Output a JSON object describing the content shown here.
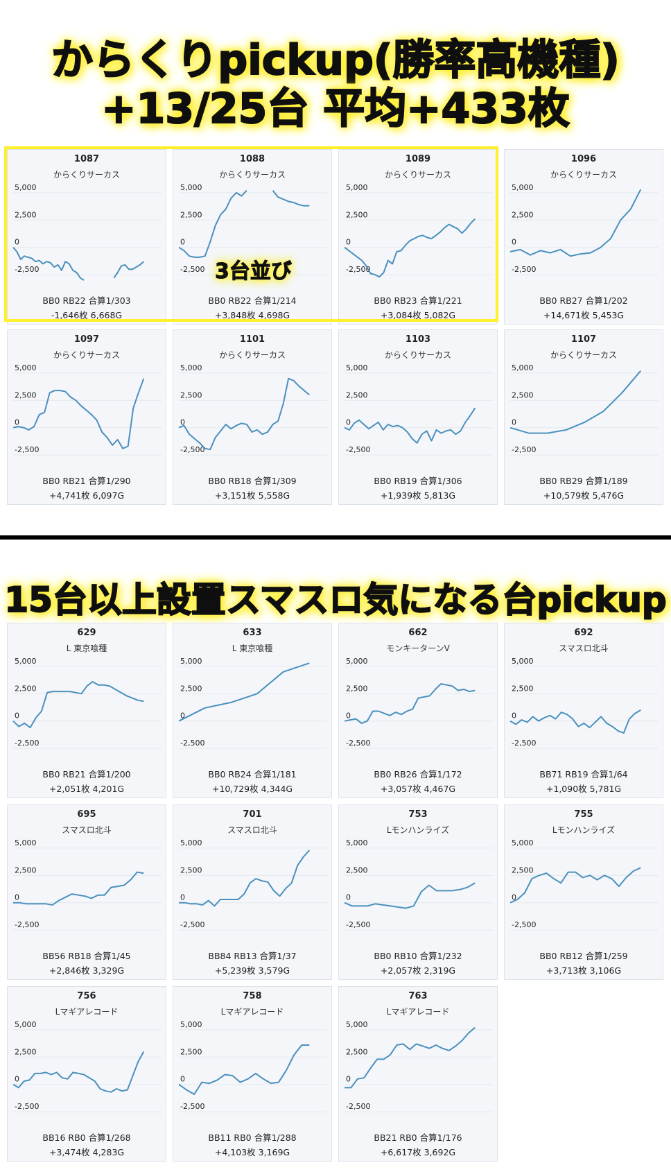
{
  "section1": {
    "title_line1": "からくりpickup(勝率高機種)",
    "title_line2": "+13/25台 平均+433枚",
    "highlight_label": "3台並び"
  },
  "section2": {
    "title": "15台以上設置スマスロ気になる台pickup"
  },
  "colors": {
    "line": "#4a90bd",
    "card_bg": "#f4f6f9",
    "highlight": "#fff02a",
    "grid": "#e3e8ee"
  },
  "chart_data": [
    {
      "type": "line",
      "number": "1087",
      "name": "からくりサーカス",
      "ylim": [
        -3000,
        5500
      ],
      "yticks": [
        "5,000",
        "2,500",
        "0",
        "-2,500"
      ],
      "stats": "BB0 RB22 合算1/303",
      "result": "-1,646枚 6,668G",
      "values": [
        0,
        -400,
        -1100,
        -800,
        -900,
        -1000,
        -1300,
        -1200,
        -1500,
        -1300,
        -1400,
        -1800,
        -1600,
        -2100,
        -1300,
        -1500,
        -2100,
        -2300,
        -2800,
        -3000,
        null,
        null,
        null,
        null,
        null,
        null,
        null,
        -2800,
        -2300,
        -1700,
        -1600,
        -2000,
        -2000,
        -1800,
        -1600,
        -1300
      ]
    },
    {
      "type": "line",
      "number": "1088",
      "name": "からくりサーカス",
      "ylim": [
        -3000,
        5500
      ],
      "yticks": [
        "5,000",
        "2,500",
        "0",
        "-2,500"
      ],
      "stats": "BB0 RB22 合算1/214",
      "result": "+3,848枚 4,698G",
      "values": [
        0,
        -300,
        -800,
        -900,
        -900,
        -800,
        500,
        2000,
        3000,
        3500,
        4500,
        5000,
        4700,
        5200,
        null,
        null,
        null,
        null,
        5200,
        4600,
        4400,
        4200,
        4100,
        3900,
        3800,
        3800
      ]
    },
    {
      "type": "line",
      "number": "1089",
      "name": "からくりサーカス",
      "ylim": [
        -3000,
        5500
      ],
      "yticks": [
        "5,000",
        "2,500",
        "0",
        "-2,500"
      ],
      "stats": "BB0 RB23 合算1/221",
      "result": "+3,084枚 5,082G",
      "values": [
        0,
        -300,
        -600,
        -900,
        -1200,
        -1700,
        -2400,
        -2500,
        -2700,
        -2300,
        -1200,
        -1500,
        -400,
        -300,
        200,
        600,
        800,
        1000,
        1100,
        900,
        800,
        1100,
        1400,
        1800,
        2100,
        1900,
        1700,
        1300,
        1700,
        2200,
        2600
      ]
    },
    {
      "type": "line",
      "number": "1096",
      "name": "からくりサーカス",
      "ylim": [
        -3000,
        5500
      ],
      "yticks": [
        "5,000",
        "2,500",
        "0",
        "-2,500"
      ],
      "stats": "BB0 RB27 合算1/202",
      "result": "+14,671枚 5,453G",
      "values": [
        -400,
        -200,
        -700,
        -300,
        -500,
        -200,
        -800,
        -600,
        -500,
        0,
        800,
        2500,
        3500,
        5300
      ]
    },
    {
      "type": "line",
      "number": "1097",
      "name": "からくりサーカス",
      "ylim": [
        -3000,
        5500
      ],
      "yticks": [
        "5,000",
        "2,500",
        "0",
        "-2,500"
      ],
      "stats": "BB0 RB21 合算1/290",
      "result": "+4,741枚 6,097G",
      "values": [
        0,
        100,
        0,
        -200,
        100,
        1200,
        1400,
        3200,
        3400,
        3400,
        3300,
        2800,
        2500,
        2000,
        1600,
        1200,
        700,
        -400,
        -900,
        -1600,
        -1100,
        -1900,
        -1700,
        1800,
        3200,
        4500
      ]
    },
    {
      "type": "line",
      "number": "1101",
      "name": "からくりサーカス",
      "ylim": [
        -3000,
        5500
      ],
      "yticks": [
        "5,000",
        "2,500",
        "0",
        "-2,500"
      ],
      "stats": "BB0 RB18 合算1/309",
      "result": "+3,151枚 5,558G",
      "values": [
        0,
        200,
        -600,
        -1000,
        -1400,
        -1900,
        -2000,
        -900,
        -300,
        300,
        -100,
        200,
        400,
        300,
        -400,
        -200,
        -600,
        -400,
        300,
        600,
        2200,
        4500,
        4300,
        3800,
        3400,
        3000
      ]
    },
    {
      "type": "line",
      "number": "1103",
      "name": "からくりサーカス",
      "ylim": [
        -3000,
        5500
      ],
      "yticks": [
        "5,000",
        "2,500",
        "0",
        "-2,500"
      ],
      "stats": "BB0 RB19 合算1/306",
      "result": "+1,939枚 5,813G",
      "values": [
        0,
        -200,
        400,
        700,
        300,
        -100,
        200,
        500,
        -200,
        300,
        100,
        200,
        0,
        -400,
        -1000,
        -1400,
        -600,
        -300,
        -1200,
        -200,
        -500,
        -300,
        -200,
        -600,
        -300,
        500,
        1100,
        1800
      ]
    },
    {
      "type": "line",
      "number": "1107",
      "name": "からくりサーカス",
      "ylim": [
        -3000,
        5500
      ],
      "yticks": [
        "5,000",
        "2,500",
        "0",
        "-2,500"
      ],
      "stats": "BB0 RB29 合算1/189",
      "result": "+10,579枚 5,476G",
      "values": [
        0,
        -500,
        -500,
        -200,
        500,
        1500,
        3200,
        5200
      ]
    },
    {
      "type": "line",
      "number": "629",
      "name": "L 東京喰種",
      "ylim": [
        -3000,
        5500
      ],
      "yticks": [
        "5,000",
        "2,500",
        "0",
        "-2,500"
      ],
      "stats": "BB0 RB21 合算1/200",
      "result": "+2,051枚 4,201G",
      "values": [
        0,
        -500,
        -200,
        -600,
        300,
        900,
        2600,
        2700,
        2700,
        2700,
        2700,
        2600,
        2500,
        3200,
        3600,
        3300,
        3300,
        3200,
        2900,
        2600,
        2300,
        2100,
        1900,
        1800
      ]
    },
    {
      "type": "line",
      "number": "633",
      "name": "L 東京喰種",
      "ylim": [
        -3000,
        5500
      ],
      "yticks": [
        "5,000",
        "2,500",
        "0",
        "-2,500"
      ],
      "stats": "BB0 RB24 合算1/181",
      "result": "+10,729枚 4,344G",
      "values": [
        0,
        1200,
        1700,
        2500,
        4500,
        5300
      ]
    },
    {
      "type": "line",
      "number": "662",
      "name": "モンキーターンV",
      "ylim": [
        -3000,
        5500
      ],
      "yticks": [
        "5,000",
        "2,500",
        "0",
        "-2,500"
      ],
      "stats": "BB0 RB26 合算1/172",
      "result": "+3,057枚 4,467G",
      "values": [
        0,
        100,
        200,
        -200,
        0,
        900,
        900,
        700,
        500,
        800,
        600,
        900,
        1100,
        2100,
        2200,
        2300,
        2900,
        3400,
        3300,
        3200,
        2800,
        2900,
        2700,
        2800
      ]
    },
    {
      "type": "line",
      "number": "692",
      "name": "スマスロ北斗",
      "ylim": [
        -3000,
        5500
      ],
      "yticks": [
        "5,000",
        "2,500",
        "0",
        "-2,500"
      ],
      "stats": "BB71 RB19 合算1/64",
      "result": "+1,090枚 5,781G",
      "values": [
        0,
        -300,
        100,
        -100,
        400,
        0,
        300,
        500,
        200,
        800,
        600,
        200,
        -500,
        -200,
        -600,
        -100,
        400,
        -200,
        -500,
        -900,
        -1100,
        200,
        700,
        1000
      ]
    },
    {
      "type": "line",
      "number": "695",
      "name": "スマスロ北斗",
      "ylim": [
        -3000,
        5500
      ],
      "yticks": [
        "5,000",
        "2,500",
        "0",
        "-2,500"
      ],
      "stats": "BB56 RB18 合算1/45",
      "result": "+2,846枚 3,329G",
      "values": [
        0,
        0,
        -100,
        -100,
        -100,
        -100,
        -200,
        200,
        500,
        800,
        700,
        600,
        400,
        700,
        700,
        1400,
        1500,
        1600,
        2100,
        2800,
        2700
      ]
    },
    {
      "type": "line",
      "number": "701",
      "name": "スマスロ北斗",
      "ylim": [
        -3000,
        5500
      ],
      "yticks": [
        "5,000",
        "2,500",
        "0",
        "-2,500"
      ],
      "stats": "BB84 RB13 合算1/37",
      "result": "+5,239枚 3,579G",
      "values": [
        0,
        0,
        -100,
        -100,
        -200,
        200,
        -300,
        300,
        300,
        300,
        300,
        800,
        1800,
        2200,
        2000,
        1900,
        1100,
        600,
        1300,
        1800,
        3400,
        4200,
        4800
      ]
    },
    {
      "type": "line",
      "number": "753",
      "name": "Lモンハンライズ",
      "ylim": [
        -3000,
        5500
      ],
      "yticks": [
        "5,000",
        "2,500",
        "0",
        "-2,500"
      ],
      "stats": "BB0 RB10 合算1/232",
      "result": "+2,057枚 2,319G",
      "values": [
        0,
        -300,
        -300,
        -300,
        -100,
        -200,
        -300,
        -400,
        -500,
        -300,
        1000,
        1600,
        1100,
        1100,
        1100,
        1200,
        1400,
        1800
      ]
    },
    {
      "type": "line",
      "number": "755",
      "name": "Lモンハンライズ",
      "ylim": [
        -3000,
        5500
      ],
      "yticks": [
        "5,000",
        "2,500",
        "0",
        "-2,500"
      ],
      "stats": "BB0 RB12 合算1/259",
      "result": "+3,713枚 3,106G",
      "values": [
        0,
        300,
        900,
        2200,
        2500,
        2700,
        2200,
        1800,
        2800,
        2800,
        2300,
        2500,
        2100,
        2500,
        2200,
        1500,
        2300,
        2900,
        3200
      ]
    },
    {
      "type": "line",
      "number": "756",
      "name": "Lマギアレコード",
      "ylim": [
        -3000,
        5500
      ],
      "yticks": [
        "5,000",
        "2,500",
        "0",
        "-2,500"
      ],
      "stats": "BB16 RB0 合算1/268",
      "result": "+3,474枚 4,283G",
      "values": [
        0,
        -300,
        300,
        400,
        1000,
        1000,
        1100,
        900,
        1100,
        600,
        500,
        1100,
        1000,
        900,
        600,
        300,
        -400,
        -600,
        -700,
        -400,
        -600,
        -500,
        800,
        2100,
        3000
      ]
    },
    {
      "type": "line",
      "number": "758",
      "name": "Lマギアレコード",
      "ylim": [
        -3000,
        5500
      ],
      "yticks": [
        "5,000",
        "2,500",
        "0",
        "-2,500"
      ],
      "stats": "BB11 RB0 合算1/288",
      "result": "+4,103枚 3,169G",
      "values": [
        0,
        -500,
        -900,
        200,
        100,
        400,
        900,
        800,
        200,
        500,
        1000,
        500,
        100,
        200,
        1300,
        2700,
        3600,
        3600
      ]
    },
    {
      "type": "line",
      "number": "763",
      "name": "Lマギアレコード",
      "ylim": [
        -3000,
        5500
      ],
      "yticks": [
        "5,000",
        "2,500",
        "0",
        "-2,500"
      ],
      "stats": "BB21 RB0 合算1/176",
      "result": "+6,617枚 3,692G",
      "values": [
        -300,
        -300,
        500,
        600,
        1500,
        2300,
        2300,
        2700,
        3600,
        3700,
        3200,
        3700,
        3500,
        3300,
        3600,
        3300,
        3100,
        3500,
        4000,
        4700,
        5200
      ]
    }
  ]
}
